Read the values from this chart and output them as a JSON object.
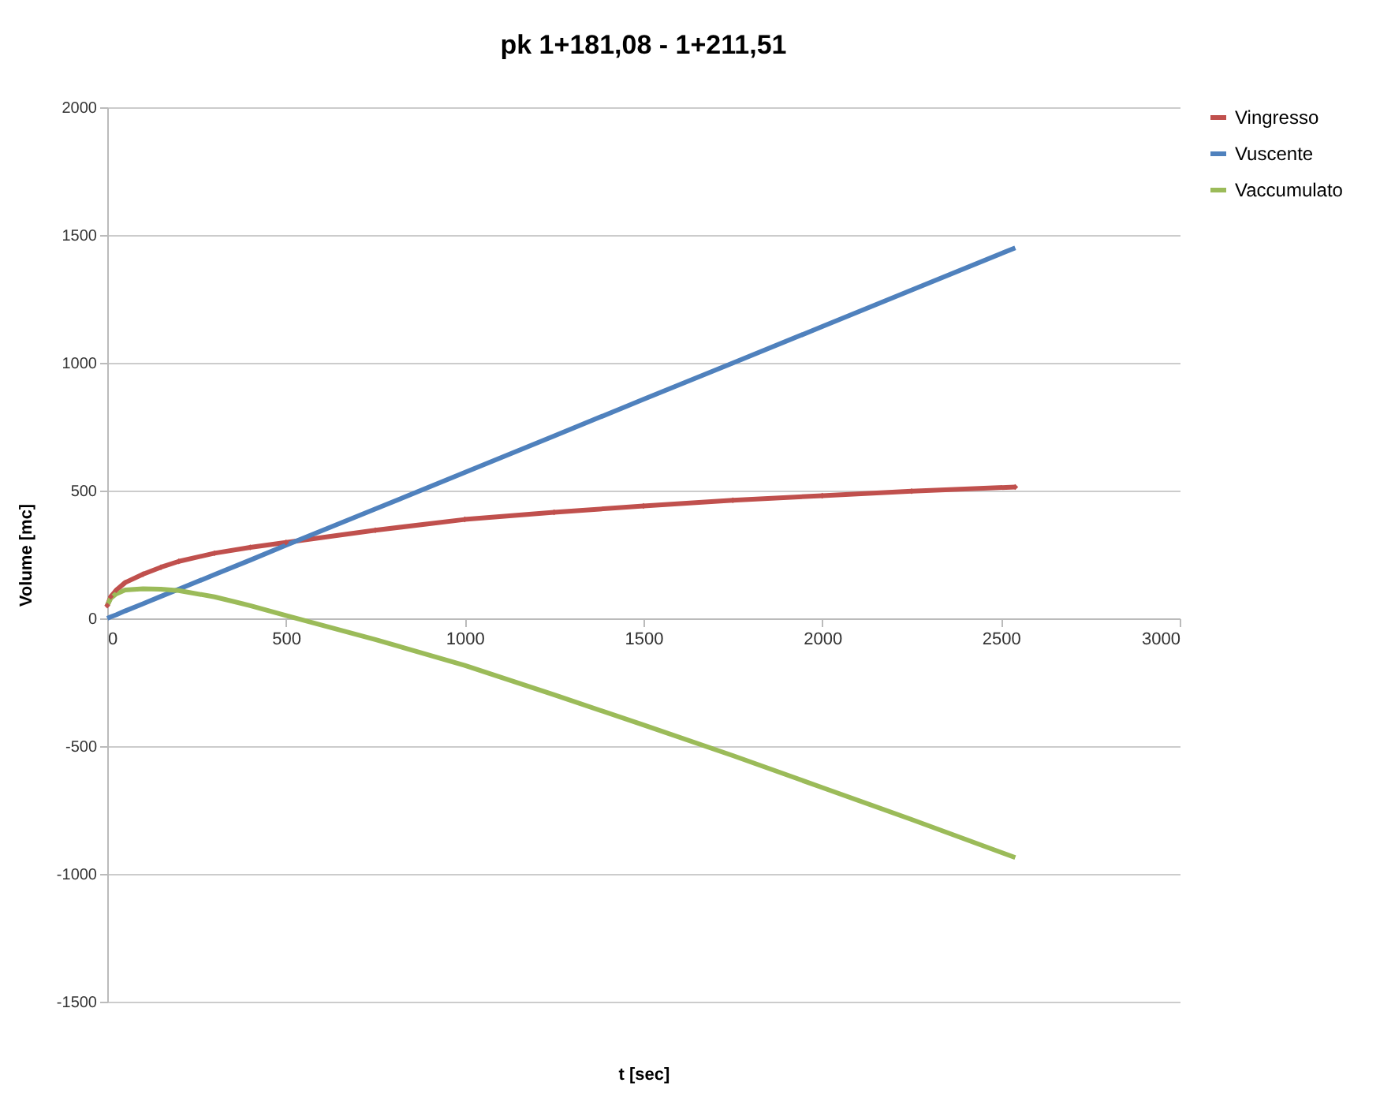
{
  "chart_data": {
    "type": "line",
    "title": "pk 1+181,08 - 1+211,51",
    "xlabel": "t [sec]",
    "ylabel": "Volume [mc]",
    "x": [
      0,
      10,
      25,
      50,
      100,
      150,
      200,
      300,
      400,
      500,
      750,
      1000,
      1250,
      1500,
      1750,
      2000,
      2250,
      2540
    ],
    "series": [
      {
        "name": "Vingresso",
        "color": "#c0504d",
        "marker": "diamond",
        "values": [
          50,
          85,
          110,
          140,
          173,
          200,
          223,
          255,
          278,
          297,
          345,
          387,
          415,
          440,
          462,
          480,
          498,
          514
        ]
      },
      {
        "name": "Vuscente",
        "color": "#4f81bd",
        "values": [
          0,
          6,
          14,
          29,
          57,
          86,
          114,
          171,
          228,
          286,
          428,
          571,
          714,
          857,
          999,
          1142,
          1285,
          1450
        ]
      },
      {
        "name": "Vaccumulato",
        "color": "#9bbb59",
        "values": [
          50,
          79,
          96,
          111,
          116,
          114,
          109,
          84,
          50,
          11,
          -83,
          -184,
          -299,
          -417,
          -537,
          -662,
          -787,
          -936
        ]
      }
    ],
    "xlim": [
      0,
      3000
    ],
    "xticks": [
      0,
      500,
      1000,
      1500,
      2000,
      2500,
      3000
    ],
    "ylim": [
      -1500,
      2000
    ],
    "yticks": [
      -1500,
      -1000,
      -500,
      0,
      500,
      1000,
      1500,
      2000
    ],
    "grid": "y",
    "legend": "right",
    "line_style": "solid"
  }
}
